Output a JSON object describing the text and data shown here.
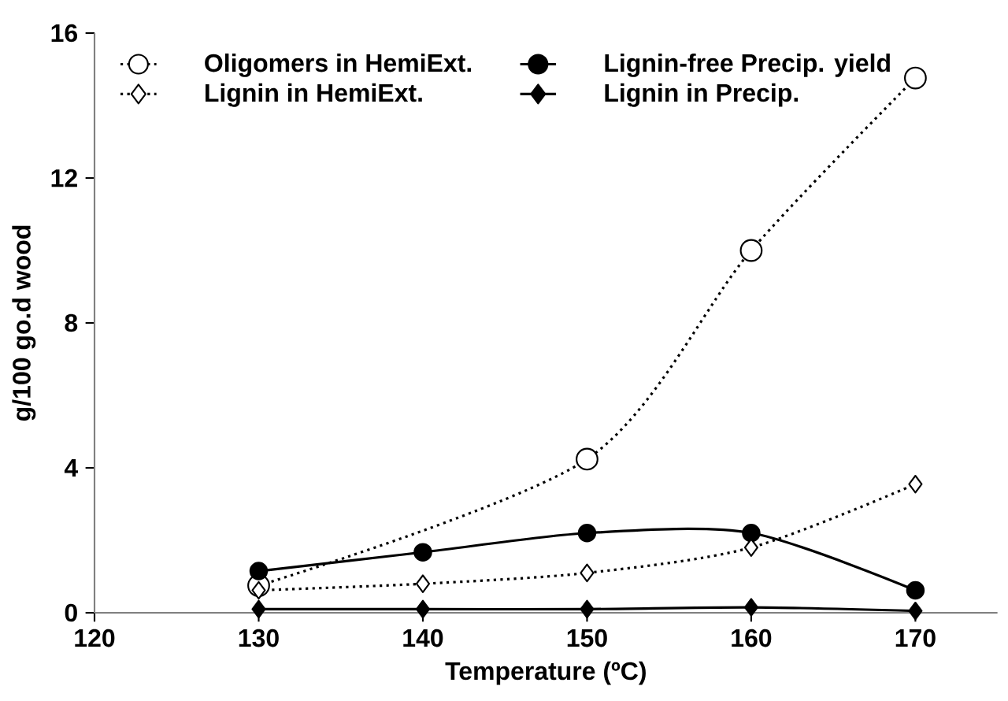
{
  "chart_data": {
    "type": "line",
    "xlabel": "Temperature (ºC)",
    "ylabel": "g/100 go.d wood",
    "x": [
      130,
      140,
      150,
      160,
      170
    ],
    "series": [
      {
        "name": "Oligomers in HemiExt.",
        "color": "#000000",
        "values": [
          0.75,
          null,
          4.24,
          10.0,
          14.76
        ],
        "marker": "circle",
        "line_style": "dotted"
      },
      {
        "name": "Lignin-free Precip. yield",
        "color": "#000000",
        "values": [
          1.15,
          1.67,
          2.2,
          2.2,
          0.62
        ],
        "marker": "circle",
        "line_style": "solid"
      },
      {
        "name": "Lignin in HemiExt.",
        "color": "#000000",
        "values": [
          0.62,
          0.8,
          1.1,
          1.8,
          3.55
        ],
        "marker": "diamond",
        "line_style": "dotted"
      },
      {
        "name": "Lignin in Precip.",
        "color": "#000000",
        "values": [
          0.1,
          0.1,
          0.1,
          0.15,
          0.05
        ],
        "marker": "diamond",
        "line_style": "solid"
      }
    ],
    "xlim": [
      120,
      175
    ],
    "xticks": [
      120,
      130,
      140,
      150,
      160,
      170
    ],
    "ylim": [
      0,
      16
    ],
    "yticks": [
      0,
      4,
      8,
      12,
      16
    ],
    "legend": "top left",
    "grid": false
  }
}
